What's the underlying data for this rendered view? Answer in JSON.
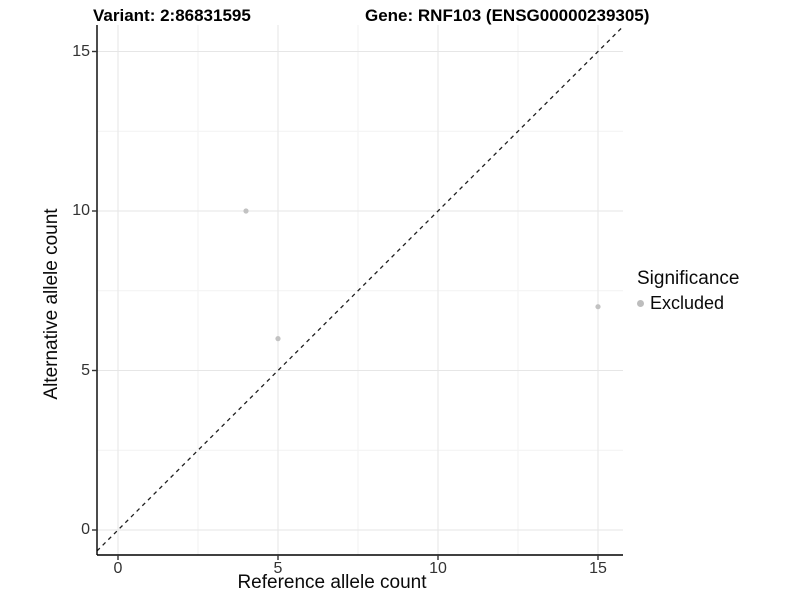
{
  "chart_data": {
    "type": "scatter",
    "title_left": "Variant: 2:86831595",
    "title_right": "Gene: RNF103 (ENSG00000239305)",
    "xlabel": "Reference allele count",
    "ylabel": "Alternative allele count",
    "x_ticks": [
      0,
      5,
      10,
      15
    ],
    "y_ticks": [
      0,
      5,
      10,
      15
    ],
    "xlim": [
      -0.66,
      15.8
    ],
    "ylim": [
      -0.78,
      16.6
    ],
    "grid": "major+minor",
    "series": [
      {
        "name": "Excluded",
        "color": "#c2c2c2",
        "points": [
          {
            "x": 4,
            "y": 10
          },
          {
            "x": 5,
            "y": 6
          },
          {
            "x": 15,
            "y": 7
          }
        ]
      }
    ],
    "reference_line": {
      "type": "identity y=x",
      "style": "dashed",
      "color": "#1f1f1f"
    },
    "legend": {
      "position": "right",
      "title": "Significance",
      "entries": [
        {
          "label": "Excluded",
          "color": "#bdbdbd"
        }
      ]
    },
    "colors": {
      "grid_major": "#e6e6e6",
      "grid_minor": "#f2f2f2",
      "axis_line": "#000000",
      "tick_mark": "#333333",
      "background": "#ffffff"
    }
  }
}
